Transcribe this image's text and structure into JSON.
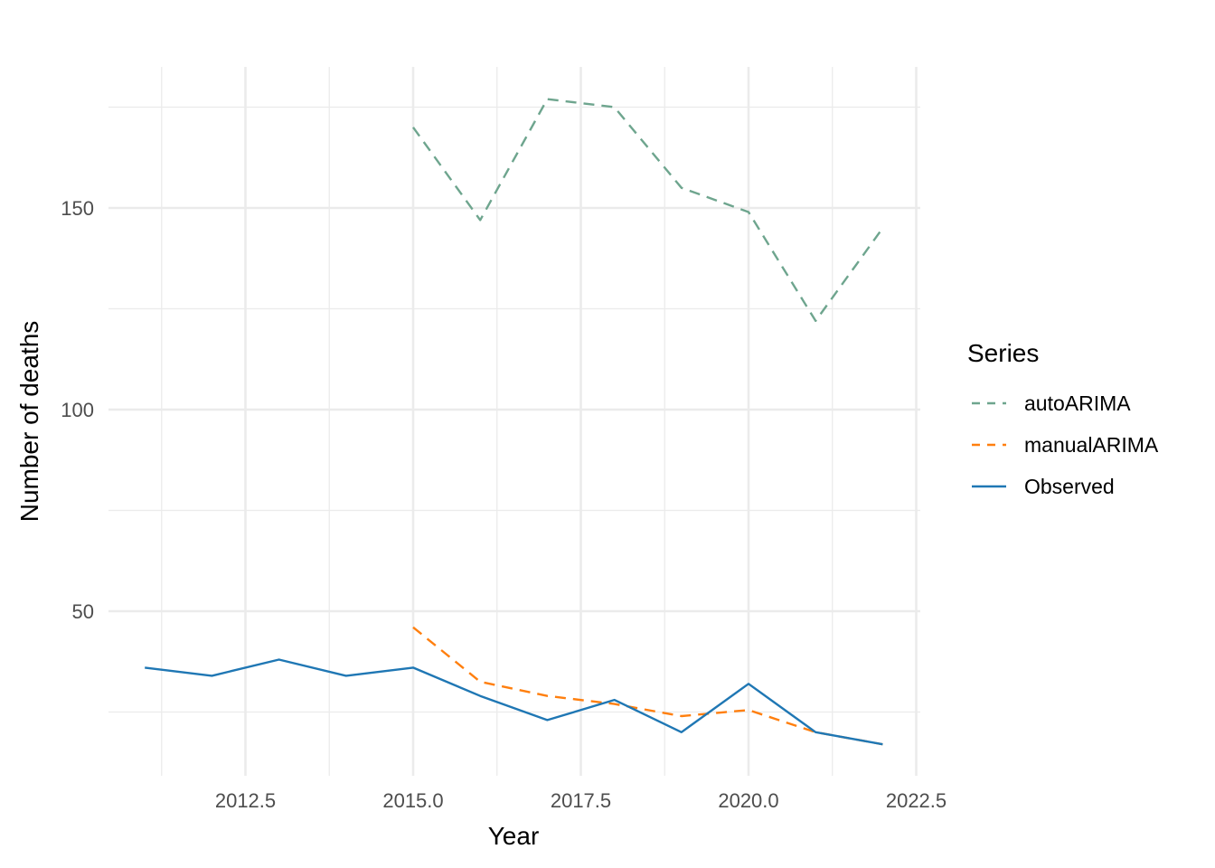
{
  "chart_data": {
    "type": "line",
    "title": "",
    "xlabel": "Year",
    "ylabel": "Number of deaths",
    "xlim": [
      2010.8,
      2022.7
    ],
    "ylim": [
      14,
      176
    ],
    "x_major_ticks": [
      2012.5,
      2015.0,
      2017.5,
      2020.0,
      2022.5
    ],
    "x_tick_labels": [
      "2012.5",
      "2015.0",
      "2017.5",
      "2020.0",
      "2022.5"
    ],
    "x_minor_ticks": [
      2011.25,
      2013.75,
      2016.25,
      2018.75,
      2021.25
    ],
    "y_major_ticks": [
      50,
      100,
      150
    ],
    "y_tick_labels": [
      "50",
      "100",
      "150"
    ],
    "y_minor_ticks": [
      25,
      75,
      125,
      175
    ],
    "grid": true,
    "legend": {
      "title": "Series",
      "position": "right"
    },
    "series": [
      {
        "name": "autoARIMA",
        "color": "#6ea58e",
        "style": "dashed",
        "x": [
          2015,
          2016,
          2017,
          2018,
          2019,
          2020,
          2021,
          2022
        ],
        "values": [
          170,
          147,
          177,
          175,
          155,
          149,
          122,
          145
        ]
      },
      {
        "name": "manualARIMA",
        "color": "#ff7f0e",
        "style": "dashed",
        "x": [
          2015,
          2016,
          2017,
          2018,
          2019,
          2020,
          2021,
          2022
        ],
        "values": [
          46,
          32.5,
          29,
          27,
          24,
          25.5,
          20,
          17
        ]
      },
      {
        "name": "Observed",
        "color": "#1f77b4",
        "style": "solid",
        "x": [
          2011,
          2012,
          2013,
          2014,
          2015,
          2016,
          2017,
          2018,
          2019,
          2020,
          2021,
          2022
        ],
        "values": [
          36,
          34,
          38,
          34,
          36,
          29,
          23,
          28,
          20,
          32,
          20,
          17
        ]
      }
    ]
  }
}
